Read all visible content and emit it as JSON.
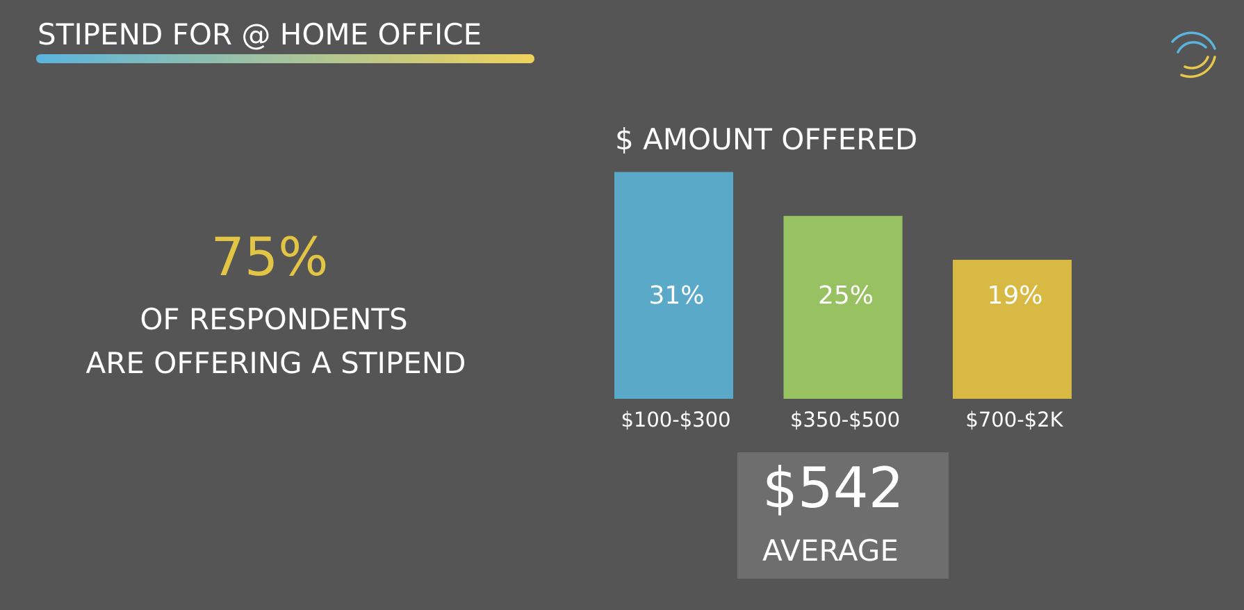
{
  "header": {
    "title": "STIPEND FOR @ HOME OFFICE"
  },
  "stat": {
    "value": "75%",
    "lines": [
      "OF RESPONDENTS",
      "ARE OFFERING A STIPEND"
    ]
  },
  "chart_data": {
    "type": "bar",
    "title": "$ AMOUNT OFFERED",
    "categories": [
      "$100-$300",
      "$350-$500",
      "$700-$2K"
    ],
    "values": [
      31,
      25,
      19
    ],
    "value_labels": [
      "31%",
      "25%",
      "19%"
    ],
    "colors": [
      "#5ba9c9",
      "#98c262",
      "#d7b944"
    ]
  },
  "average": {
    "value": "$542",
    "label": "AVERAGE"
  }
}
